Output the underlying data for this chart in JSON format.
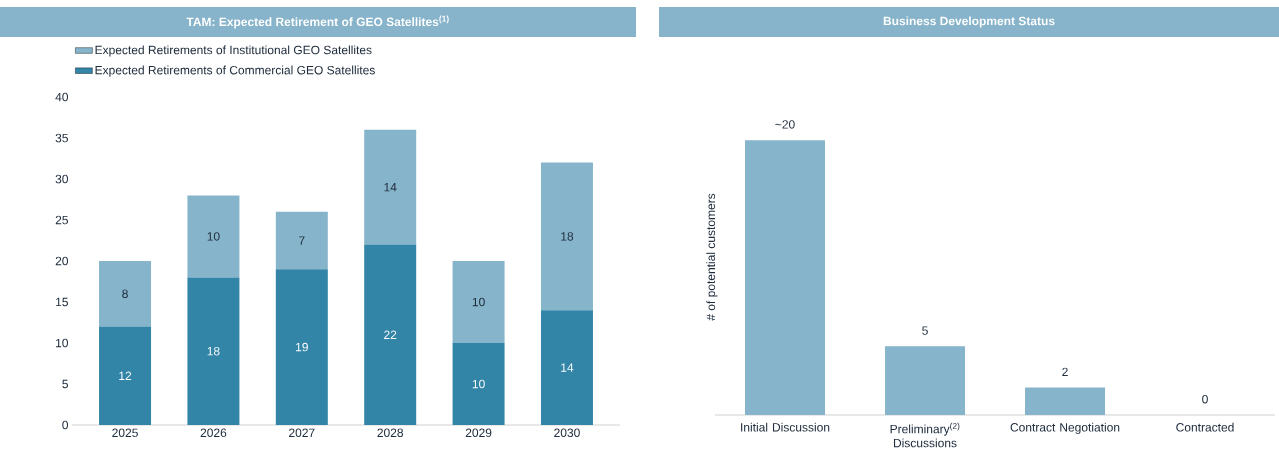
{
  "chart_data": [
    {
      "type": "bar",
      "title": "TAM: Expected Retirement of GEO Satellites$^{(1)}$",
      "categories": [
        "2025",
        "2026",
        "2027",
        "2028",
        "2029",
        "2030"
      ],
      "stacked": true,
      "series": [
        {
          "name": "Expected Retirements of Commercial GEO Satellites",
          "color": "#3385a8",
          "values": [
            12,
            18,
            19,
            22,
            10,
            14
          ]
        },
        {
          "name": "Expected Retirements of Institutional GEO Satellites",
          "color": "#86b5cb",
          "values": [
            8,
            10,
            7,
            14,
            10,
            18
          ]
        }
      ],
      "ylim": [
        0,
        40
      ],
      "yticks": [
        0,
        5,
        10,
        15,
        20,
        25,
        30,
        35,
        40
      ],
      "data_labels": true,
      "legend": "top left",
      "grid": false
    },
    {
      "type": "bar",
      "title": "Business Development Status",
      "ylabel": "# of potential customers",
      "categories": [
        "Initial Discussion",
        "Preliminary$^{(2)}$ Discussions",
        "Contract Negotiation",
        "Contracted"
      ],
      "values": [
        20,
        5,
        2,
        0
      ],
      "value_labels": [
        "~20",
        "5",
        "2",
        "0"
      ],
      "color": "#86b5cb",
      "tick_labels": "x"
    }
  ]
}
